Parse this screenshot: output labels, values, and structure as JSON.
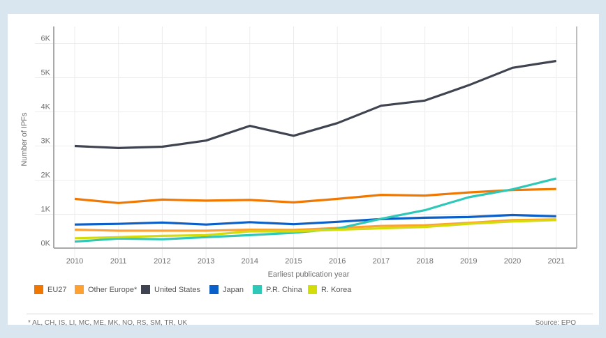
{
  "chart_data": {
    "type": "line",
    "title": "",
    "xlabel": "Earliest publication year",
    "ylabel": "Number of IPFs",
    "x": [
      "2010",
      "2011",
      "2012",
      "2013",
      "2014",
      "2015",
      "2016",
      "2017",
      "2018",
      "2019",
      "2020",
      "2021"
    ],
    "y_ticks": [
      0,
      1000,
      2000,
      3000,
      4000,
      5000,
      6000
    ],
    "y_tick_labels": [
      "0K",
      "1K",
      "2K",
      "3K",
      "4K",
      "5K",
      "6K"
    ],
    "ylim": [
      0,
      6500
    ],
    "grid": true,
    "legend_position": "bottom-left",
    "series": [
      {
        "name": "EU27",
        "color": "#f07800",
        "values": [
          1450,
          1330,
          1430,
          1400,
          1420,
          1350,
          1450,
          1570,
          1550,
          1640,
          1710,
          1740
        ]
      },
      {
        "name": "Other Europe*",
        "color": "#ffa033",
        "values": [
          550,
          520,
          520,
          520,
          550,
          540,
          600,
          660,
          680,
          750,
          830,
          850
        ]
      },
      {
        "name": "United States",
        "color": "#3f4450",
        "values": [
          3000,
          2940,
          2980,
          3160,
          3590,
          3300,
          3670,
          4180,
          4330,
          4780,
          5290,
          5490
        ]
      },
      {
        "name": "Japan",
        "color": "#0a5fc8",
        "values": [
          700,
          720,
          760,
          700,
          770,
          710,
          780,
          860,
          900,
          920,
          980,
          940
        ]
      },
      {
        "name": "P.R. China",
        "color": "#2ec8b8",
        "values": [
          200,
          290,
          270,
          330,
          390,
          460,
          580,
          870,
          1120,
          1500,
          1730,
          2050
        ]
      },
      {
        "name": "R. Korea",
        "color": "#d4dc0a",
        "values": [
          300,
          330,
          370,
          390,
          500,
          500,
          550,
          590,
          630,
          720,
          790,
          830
        ]
      }
    ]
  },
  "footnote": "* AL, CH, IS, LI, MC, ME, MK, NO, RS, SM, TR, UK",
  "source": "Source: EPO"
}
